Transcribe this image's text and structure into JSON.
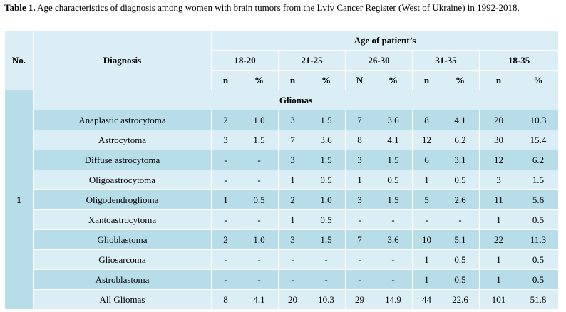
{
  "caption": {
    "label": "Table 1.",
    "text": " Age characteristics of diagnosis among women with brain tumors from the Lviv Cancer Register (West of Ukraine) in 1992-2018."
  },
  "header": {
    "no": "No.",
    "diagnosis": "Diagnosis",
    "age": "Age of patient’s",
    "groups": [
      "18-20",
      "21-25",
      "26-30",
      "31-35",
      "18-35"
    ],
    "sub": [
      "n",
      "%",
      "n",
      "%",
      "N",
      "%",
      "n",
      "%",
      "n",
      "%"
    ]
  },
  "section": {
    "number": "1",
    "title": "Gliomas"
  },
  "rows": [
    {
      "name": "Anaplastic astrocytoma",
      "cells": [
        "2",
        "1.0",
        "3",
        "1.5",
        "7",
        "3.6",
        "8",
        "4.1",
        "20",
        "10.3"
      ]
    },
    {
      "name": "Astrocytoma",
      "cells": [
        "3",
        "1.5",
        "7",
        "3.6",
        "8",
        "4.1",
        "12",
        "6.2",
        "30",
        "15.4"
      ]
    },
    {
      "name": "Diffuse astrocytoma",
      "cells": [
        "-",
        "-",
        "3",
        "1.5",
        "3",
        "1.5",
        "6",
        "3.1",
        "12",
        "6.2"
      ]
    },
    {
      "name": "Oligoastrocytoma",
      "cells": [
        "-",
        "-",
        "1",
        "0.5",
        "1",
        "0.5",
        "1",
        "0.5",
        "3",
        "1.5"
      ]
    },
    {
      "name": "Oligodendroglioma",
      "cells": [
        "1",
        "0.5",
        "2",
        "1.0",
        "3",
        "1.5",
        "5",
        "2.6",
        "11",
        "5.6"
      ]
    },
    {
      "name": "Xantoastrocytoma",
      "cells": [
        "-",
        "-",
        "1",
        "0.5",
        "-",
        "-",
        "-",
        "-",
        "1",
        "0.5"
      ]
    },
    {
      "name": "Glioblastoma",
      "cells": [
        "2",
        "1.0",
        "3",
        "1.5",
        "7",
        "3.6",
        "10",
        "5.1",
        "22",
        "11.3"
      ]
    },
    {
      "name": "Gliosarcoma",
      "cells": [
        "-",
        "-",
        "-",
        "-",
        "-",
        "-",
        "1",
        "0.5",
        "1",
        "0.5"
      ]
    },
    {
      "name": "Astroblastoma",
      "cells": [
        "-",
        "-",
        "-",
        "-",
        "-",
        "-",
        "1",
        "0.5",
        "1",
        "0.5"
      ]
    },
    {
      "name": "All Gliomas",
      "cells": [
        "8",
        "4.1",
        "20",
        "10.3",
        "29",
        "14.9",
        "44",
        "22.6",
        "101",
        "51.8"
      ]
    }
  ]
}
